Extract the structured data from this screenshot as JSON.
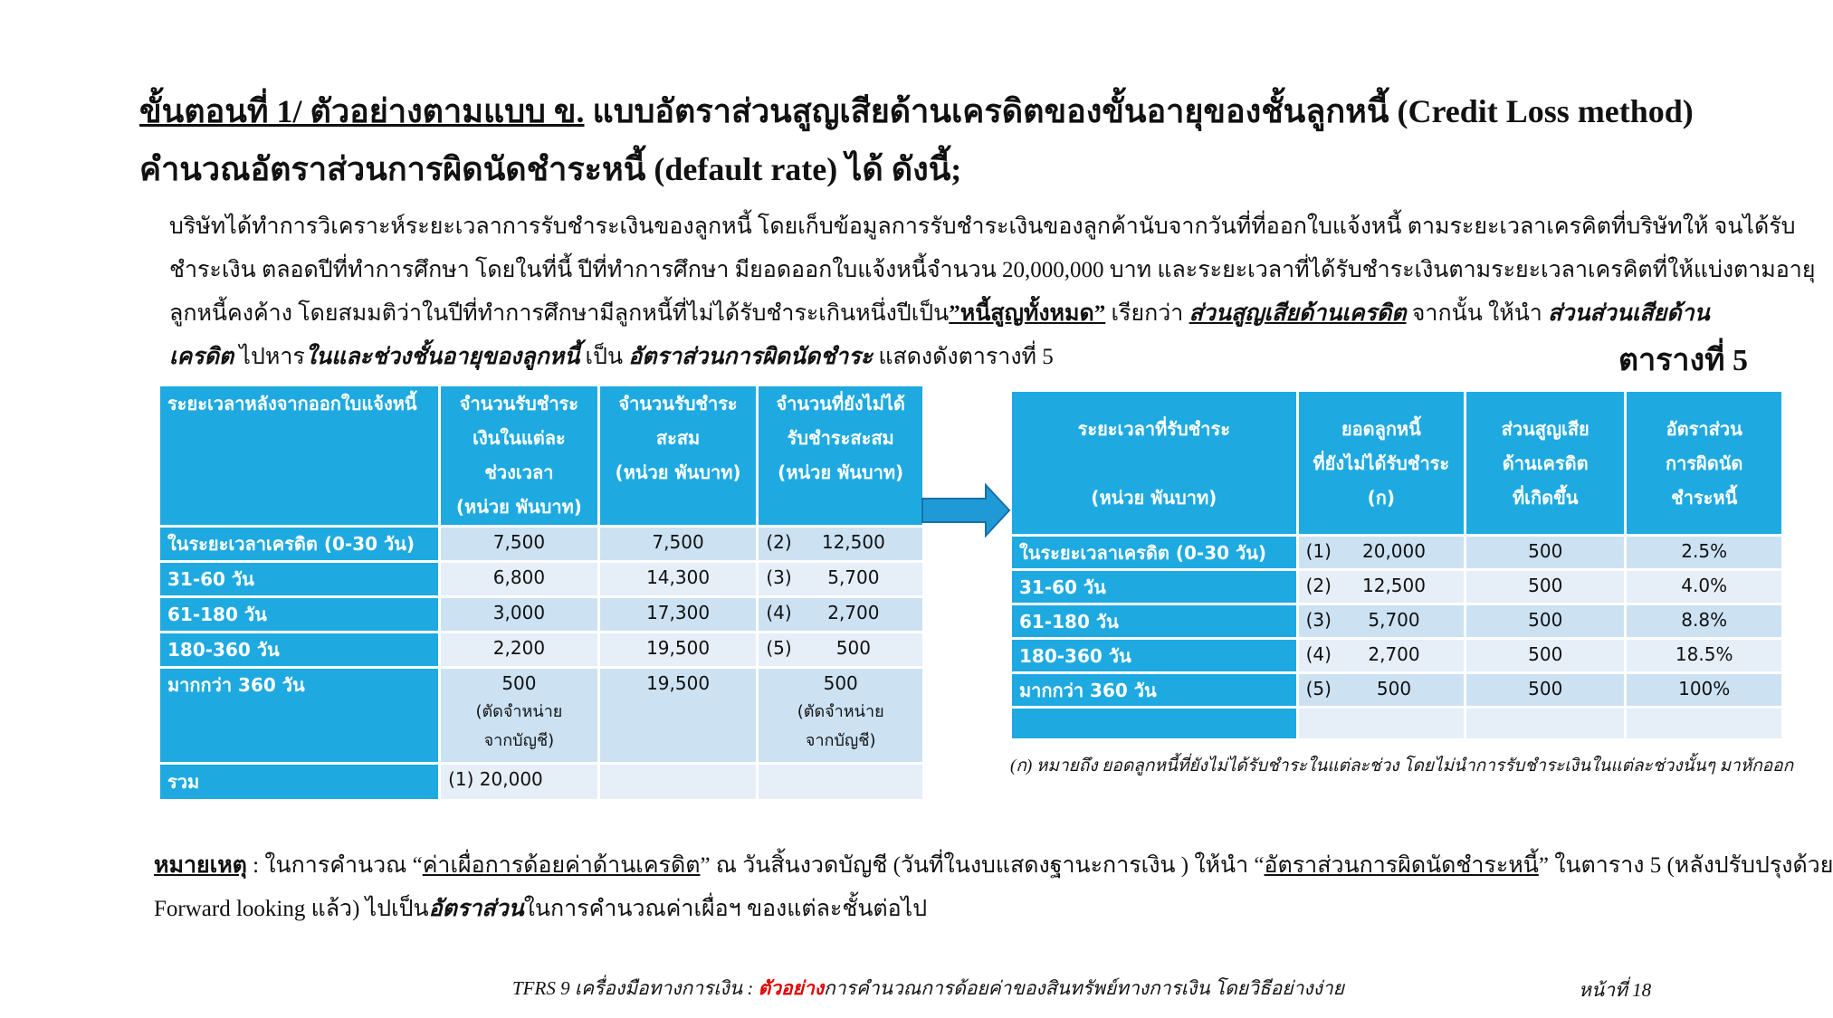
{
  "title": {
    "step": "ขั้นตอนที่ 1/ ตัวอย่างตามแบบ ข.",
    "rest": " แบบอัตราส่วนสูญเสียด้านเครดิตของขั้นอายุของชั้นลูกหนี้ (Credit Loss method)",
    "line2": "คำนวณอัตราส่วนการผิดนัดชำระหนี้ (default rate) ได้ ดังนี้;"
  },
  "paragraph": {
    "line1": "บริษัทได้ทำการวิเคราะห์ระยะเวลาการรับชำระเงินของลูกหนี้  โดยเก็บข้อมูลการรับชำระเงินของลูกค้านับจากวันที่ที่ออกใบแจ้งหนี้ ตามระยะเวลาเครคิตที่บริษัทให้ จนได้รับ",
    "line2": "ชำระเงิน ตลอดปีที่ทำการศึกษา โดยในที่นี้ ปีที่ทำการศึกษา มียอดออกใบแจ้งหนี้จำนวน 20,000,000 บาท และระยะเวลาที่ได้รับชำระเงินตามระยะเวลาเครคิตที่ให้แบ่งตามอายุ",
    "line3a": "ลูกหนี้คงค้าง  โดยสมมติว่าในปีที่ทำการศึกษามีลูกหนี้ที่ไม่ได้รับชำระเกินหนึ่งปีเป็น",
    "line3b": "”หนี้สูญทั้งหมด”",
    "line3c": " เรียกว่า ",
    "line3d": "ส่วนสูญเสียด้านเครดิต",
    "line3e": "  จากนั้น ให้นำ ",
    "line3f": "ส่วนส่วนเสียด้าน",
    "line4a": "เครดิต",
    "line4b": " ไปหาร",
    "line4c": "ในและช่วงชั้นอายุของลูกหนี้",
    "line4d": " เป็น ",
    "line4e": "อัตราส่วนการผิดนัดชำระ",
    "line4f": " แสดงดังตารางที่ 5"
  },
  "table5_label": "ตารางที่ 5",
  "left_table": {
    "headers": [
      "ระยะเวลาหลังจากออกใบแจ้งหนี้",
      "จำนวนรับชำระ\nเงินในแต่ละ\nช่วงเวลา\n(หน่วย พันบาท)",
      "จำนวนรับชำระ\nสะสม\n(หน่วย พันบาท)",
      "จำนวนที่ยังไม่ได้\nรับชำระสะสม\n(หน่วย พันบาท)"
    ],
    "rows": [
      {
        "label": "ในระยะเวลาเครดิต (0-30 วัน)",
        "paid": "7,500",
        "cum": "7,500",
        "ref": "(2)",
        "unpaid": "12,500"
      },
      {
        "label": "31-60 วัน",
        "paid": "6,800",
        "cum": "14,300",
        "ref": "(3)",
        "unpaid": "5,700"
      },
      {
        "label": "61-180 วัน",
        "paid": "3,000",
        "cum": "17,300",
        "ref": "(4)",
        "unpaid": "2,700"
      },
      {
        "label": "180-360 วัน",
        "paid": "2,200",
        "cum": "19,500",
        "ref": "(5)",
        "unpaid": "500"
      },
      {
        "label": "มากกว่า 360 วัน",
        "paid": "500",
        "paid_note": "(ตัดจำหน่าย\nจากบัญชี)",
        "cum": "19,500",
        "ref": "",
        "unpaid": "500",
        "unpaid_note": "(ตัดจำหน่าย\nจากบัญชี)"
      }
    ],
    "total": {
      "label": "รวม",
      "ref": "(1)",
      "value": "20,000"
    }
  },
  "right_table": {
    "headers": [
      "ระยะเวลาที่รับชำระ\n\n(หน่วย พันบาท)",
      "ยอดลูกหนี้\nที่ยังไม่ได้รับชำระ\n(ก)",
      "ส่วนสูญเสีย\nด้านเครดิต\nที่เกิดขึ้น",
      "อัตราส่วน\nการผิดนัด\nชำระหนี้"
    ],
    "rows": [
      {
        "label": "ในระยะเวลาเครดิต (0-30 วัน)",
        "ref": "(1)",
        "balance": "20,000",
        "loss": "500",
        "rate": "2.5%"
      },
      {
        "label": "31-60 วัน",
        "ref": "(2)",
        "balance": "12,500",
        "loss": "500",
        "rate": "4.0%"
      },
      {
        "label": "61-180 วัน",
        "ref": "(3)",
        "balance": "5,700",
        "loss": "500",
        "rate": "8.8%"
      },
      {
        "label": "180-360 วัน",
        "ref": "(4)",
        "balance": "2,700",
        "loss": "500",
        "rate": "18.5%"
      },
      {
        "label": "มากกว่า 360 วัน",
        "ref": "(5)",
        "balance": "500",
        "loss": "500",
        "rate": "100%"
      }
    ],
    "footnote": "(ก) หมายถึง ยอดลูกหนี้ที่ยังไม่ได้รับชำระในแต่ละช่วง โดยไม่นำการรับชำระเงินในแต่ละช่วงนั้นๆ มาหักออก"
  },
  "note": {
    "label": "หมายเหตุ",
    "a": " : ในการคำนวณ “",
    "b": "ค่าเผื่อการด้อยค่าด้านเครดิต",
    "c": "” ณ วันสิ้นงวดบัญชี (วันที่ในงบแสดงฐานะการเงิน ) ให้นำ “",
    "d": "อัตราส่วนการผิดนัดชำระหนี้",
    "e": "” ในตาราง 5 (หลังปรับปรุงด้วย",
    "f": "Forward looking แล้ว) ไปเป็น",
    "g": "อัตราส่วน",
    "h": "ในการคำนวณค่าเผื่อฯ ของแต่ละชั้นต่อไป"
  },
  "footer": {
    "a": "TFRS 9 เครื่องมือทางการเงิน : ",
    "b": "ตัวอย่าง",
    "c": "การคำนวณการด้อยค่าของสินทรัพย์ทางการเงิน โดยวิธีอย่างง่าย",
    "page": "หน้าที่  18"
  },
  "colors": {
    "header_blue": "#1eaae1",
    "row_light": "#cce2f3",
    "row_lighter": "#e6eef8",
    "accent_red": "#e00000",
    "arrow": "#1f9ad6"
  }
}
